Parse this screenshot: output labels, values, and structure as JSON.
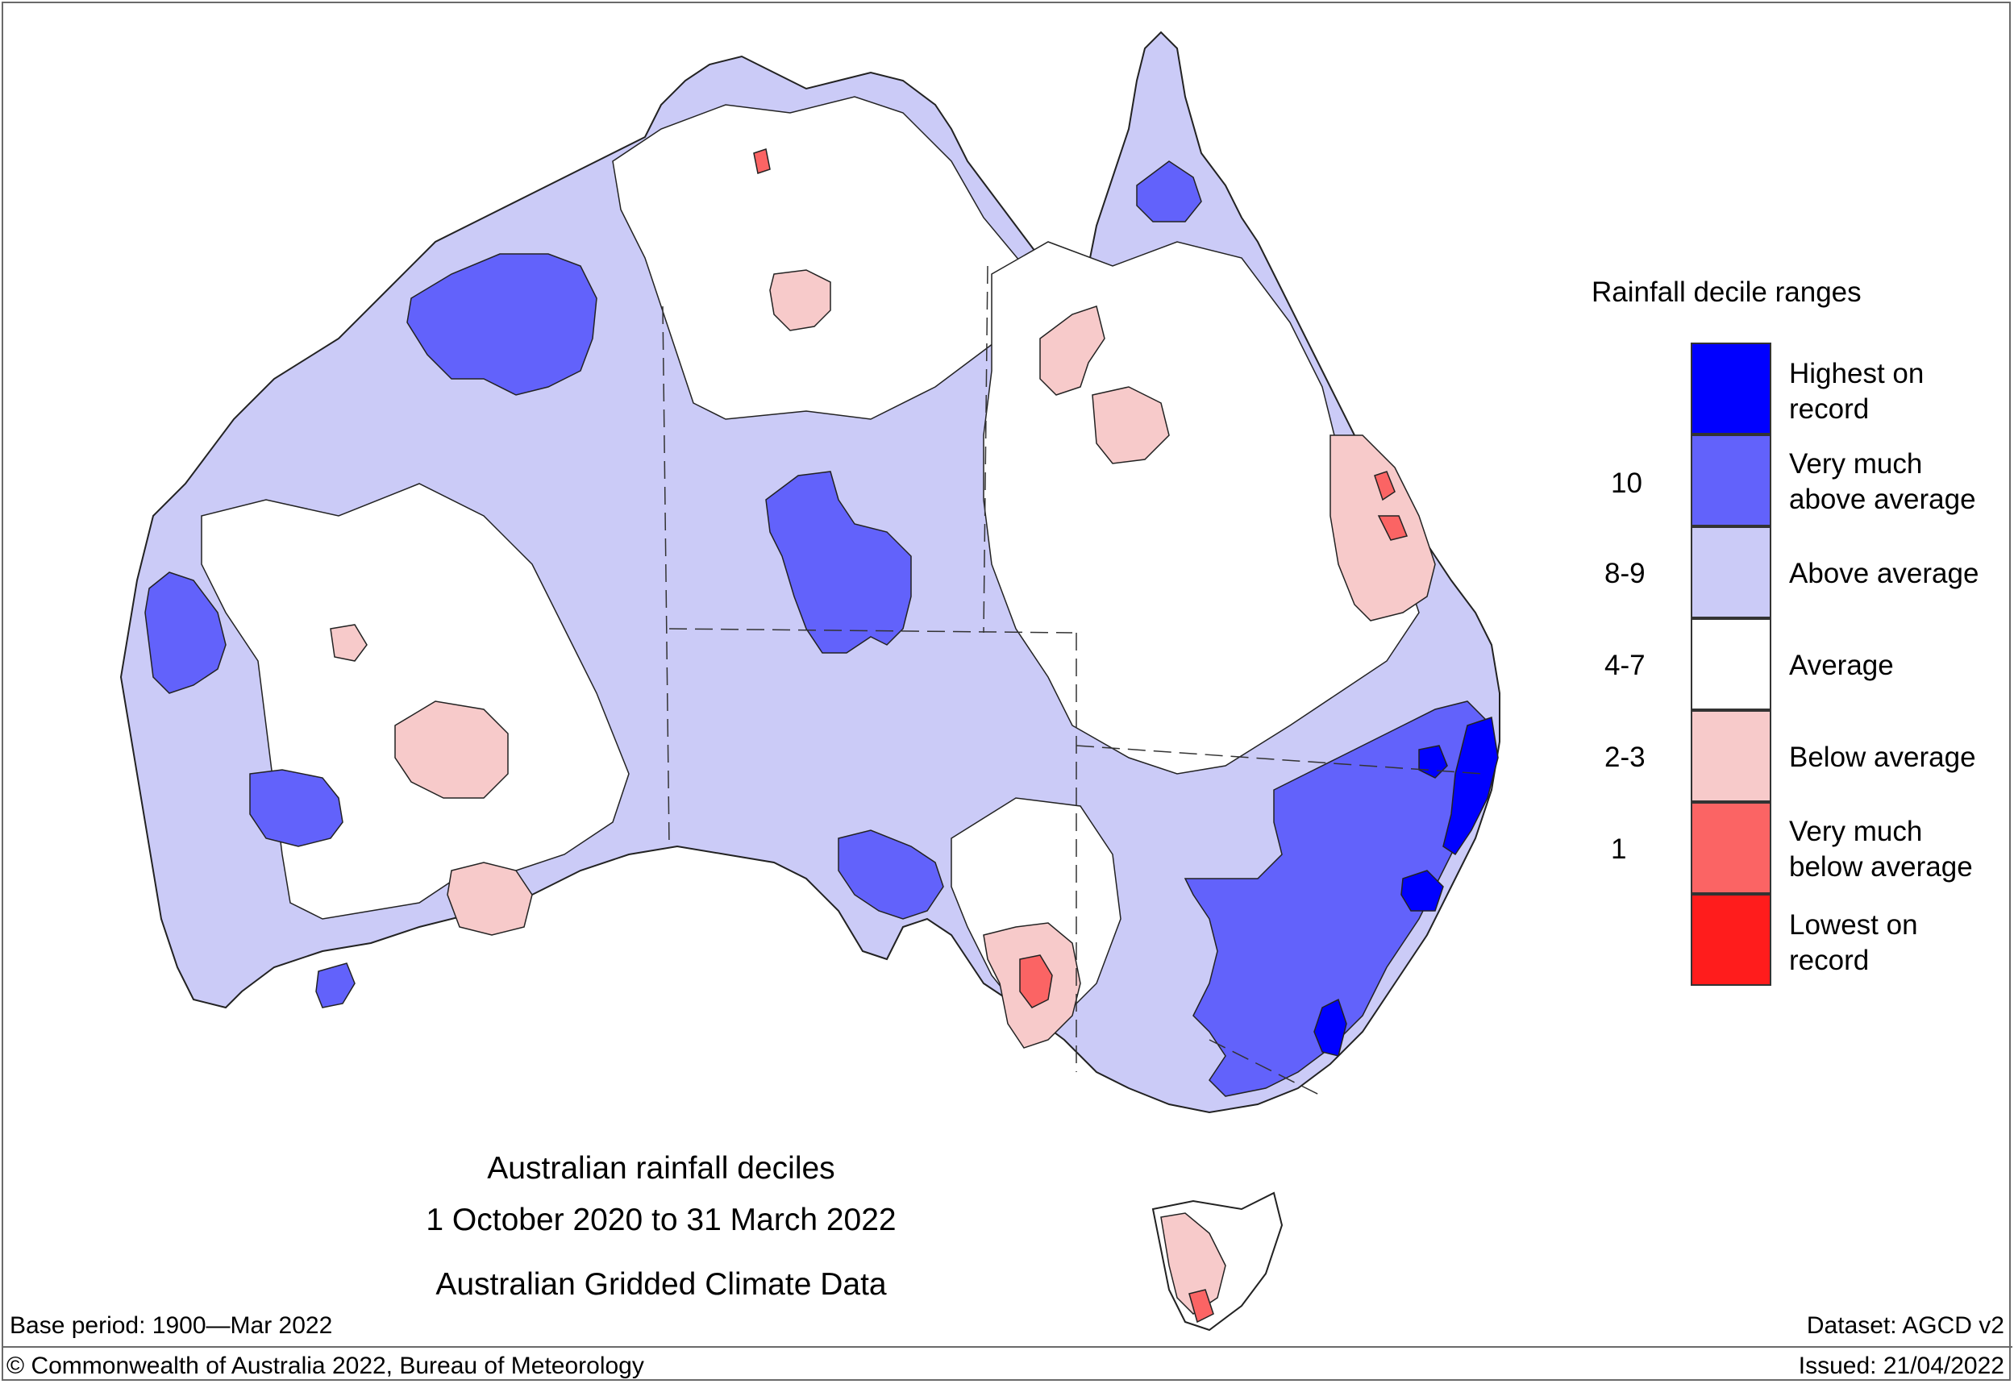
{
  "title_lines": [
    "Australian rainfall deciles",
    "1 October 2020 to 31 March 2022",
    "Australian Gridded Climate Data"
  ],
  "base_period": "Base period: 1900—Mar 2022",
  "dataset": "Dataset: AGCD v2",
  "copyright": "© Commonwealth of Australia 2022, Bureau of Meteorology",
  "issued": "Issued: 21/04/2022",
  "legend": {
    "title": "Rainfall decile ranges",
    "categories": [
      {
        "label_line1": "Highest on",
        "label_line2": "record",
        "color": "#0000ff"
      },
      {
        "label_line1": "Very much",
        "label_line2": "above average",
        "color": "#6262fb"
      },
      {
        "label_line1": "Above average",
        "label_line2": "",
        "color": "#cbcbf7"
      },
      {
        "label_line1": "Average",
        "label_line2": "",
        "color": "#ffffff"
      },
      {
        "label_line1": "Below average",
        "label_line2": "",
        "color": "#f7caca"
      },
      {
        "label_line1": "Very much",
        "label_line2": "below average",
        "color": "#fb6464"
      },
      {
        "label_line1": "Lowest on",
        "label_line2": "record",
        "color": "#ff1c1c"
      }
    ],
    "ranges": [
      "10",
      "8-9",
      "4-7",
      "2-3",
      "1"
    ]
  },
  "regions": {
    "mainland": "Australia mainland",
    "tasmania": "Tasmania"
  }
}
